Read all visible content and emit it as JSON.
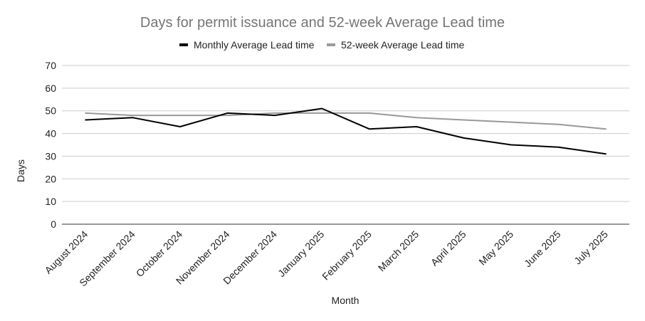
{
  "chart_data": {
    "type": "line",
    "title": "Days for permit issuance and 52-week Average Lead time",
    "xlabel": "Month",
    "ylabel": "Days",
    "ylim": [
      0,
      70
    ],
    "yticks": [
      0,
      10,
      20,
      30,
      40,
      50,
      60,
      70
    ],
    "grid": true,
    "legend_position": "top",
    "categories": [
      "August 2024",
      "September 2024",
      "October 2024",
      "November 2024",
      "December 2024",
      "January 2025",
      "February 2025",
      "March 2025",
      "April 2025",
      "May 2025",
      "June 2025",
      "July 2025"
    ],
    "series": [
      {
        "name": "Monthly Average Lead time",
        "color": "#000000",
        "values": [
          46,
          47,
          43,
          49,
          48,
          51,
          42,
          43,
          38,
          35,
          34,
          31
        ]
      },
      {
        "name": "52-week Average Lead time",
        "color": "#999999",
        "values": [
          49,
          48,
          48,
          48,
          49,
          49,
          49,
          47,
          46,
          45,
          44,
          42
        ]
      }
    ],
    "colors": {
      "grid": "#cccccc",
      "axis": "#333333",
      "title": "#757575",
      "text": "#222222"
    }
  }
}
